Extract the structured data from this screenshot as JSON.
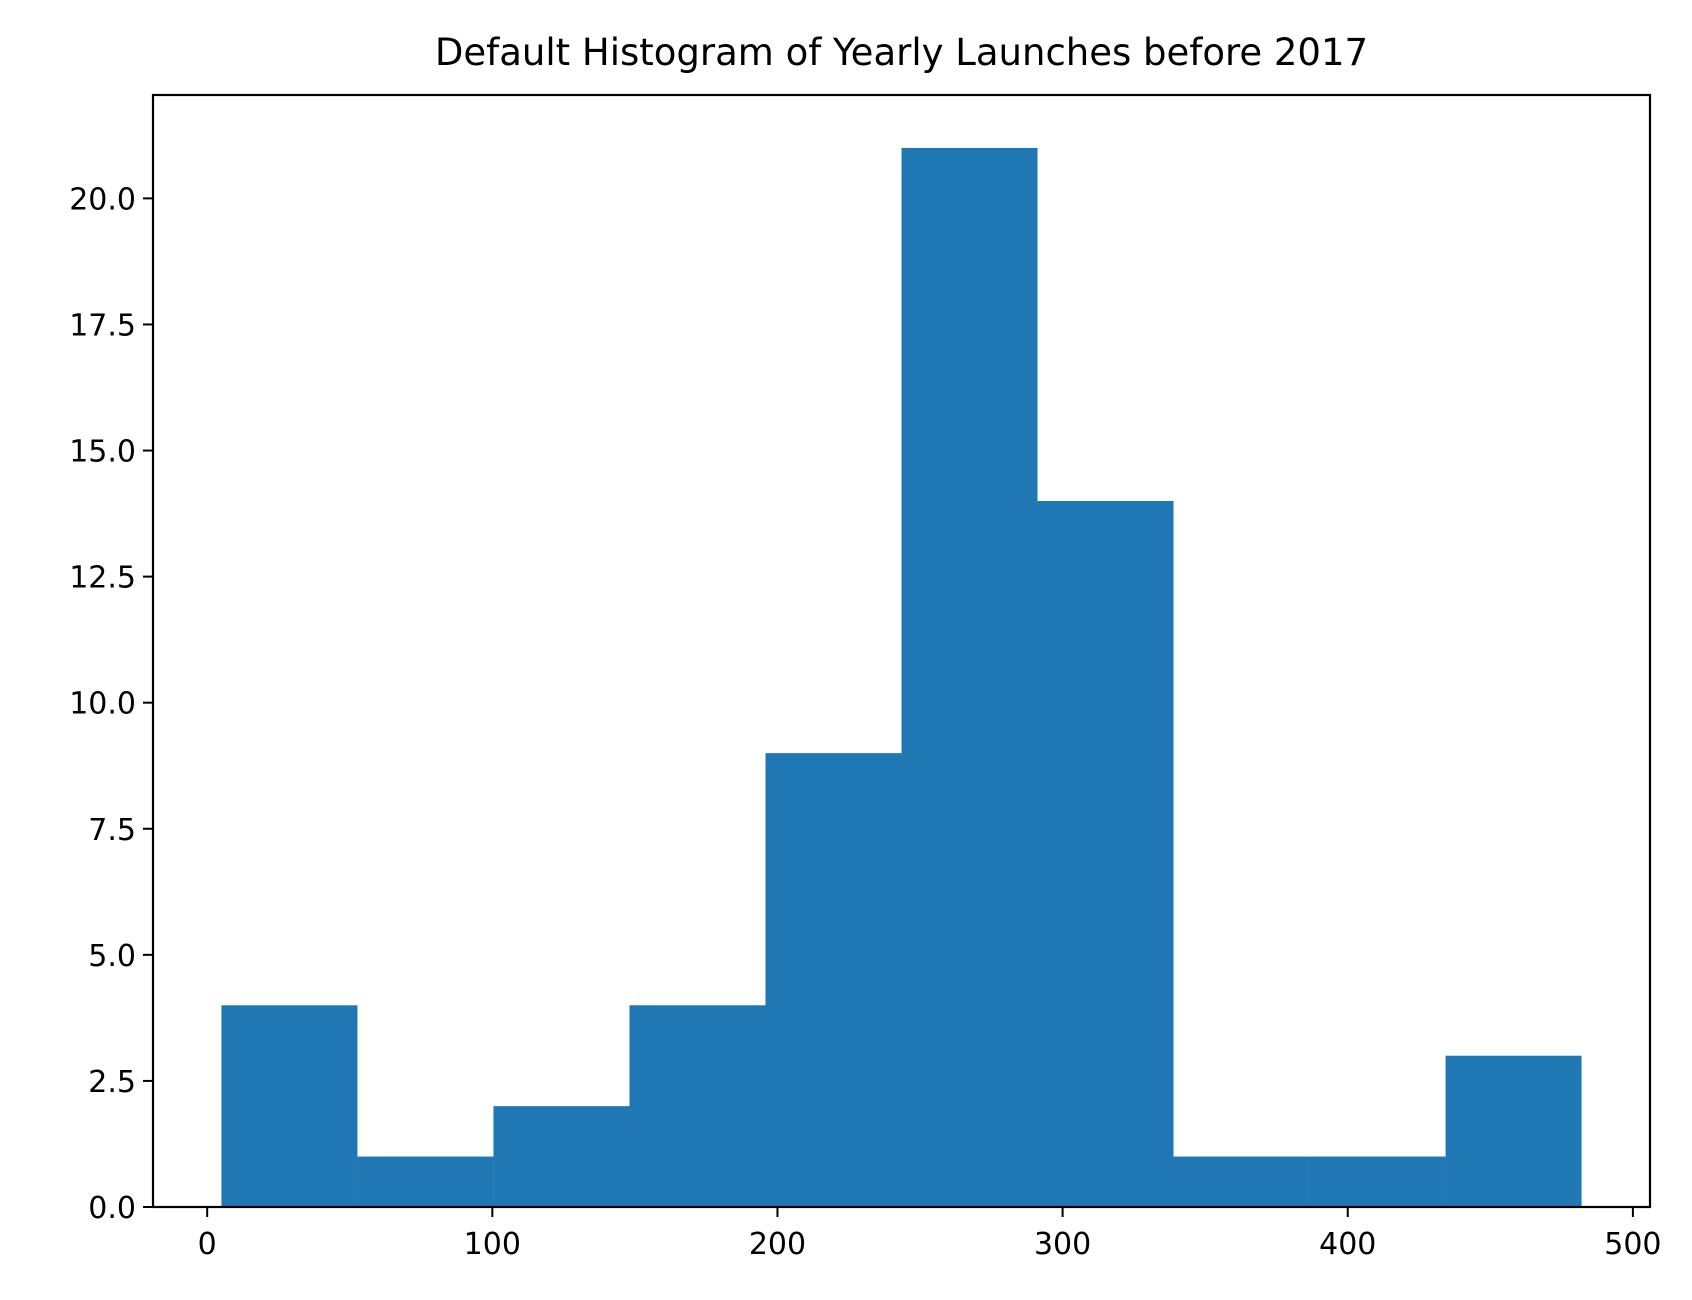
{
  "chart_data": {
    "type": "bar",
    "title": "Default Histogram of Yearly Launches before 2017",
    "xlabel": "",
    "ylabel": "",
    "bin_edges": [
      5,
      52.7,
      100.4,
      148.1,
      195.8,
      243.5,
      291.2,
      338.9,
      386.6,
      434.3,
      482
    ],
    "counts": [
      4,
      1,
      2,
      4,
      9,
      21,
      14,
      1,
      1,
      3
    ],
    "xlim": [
      -19,
      506
    ],
    "ylim": [
      0,
      22.05
    ],
    "xticks": [
      0,
      100,
      200,
      300,
      400,
      500
    ],
    "xtick_labels": [
      "0",
      "100",
      "200",
      "300",
      "400",
      "500"
    ],
    "yticks": [
      0,
      2.5,
      5,
      7.5,
      10,
      12.5,
      15,
      17.5,
      20
    ],
    "ytick_labels": [
      "0.0",
      "2.5",
      "5.0",
      "7.5",
      "10.0",
      "12.5",
      "15.0",
      "17.5",
      "20.0"
    ],
    "bar_color": "#1f77b4",
    "grid": false,
    "legend": false
  }
}
